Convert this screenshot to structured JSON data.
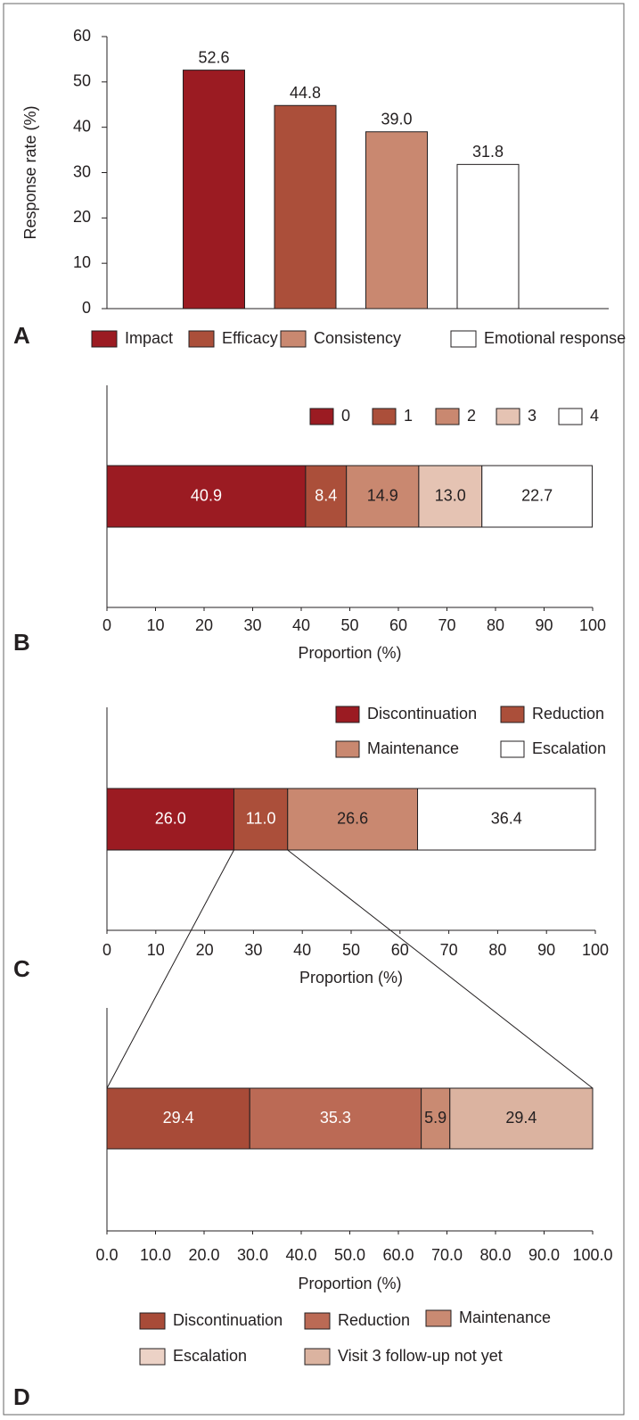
{
  "chart_data": [
    {
      "type": "bar",
      "panel_label": "A",
      "ylabel": "Response rate (%)",
      "categories": [
        "Impact",
        "Efficacy",
        "Consistency",
        "Emotional response"
      ],
      "colors": [
        "#9b1b22",
        "#ab4f3a",
        "#c98870",
        "#ffffff"
      ],
      "values": [
        52.6,
        44.8,
        39.0,
        31.8
      ],
      "value_labels": [
        "52.6",
        "44.8",
        "39.0",
        "31.8"
      ],
      "ylim": [
        0,
        60
      ],
      "yticks": [
        0,
        10,
        20,
        30,
        40,
        50,
        60
      ]
    },
    {
      "type": "stacked_barh",
      "panel_label": "B",
      "xlabel": "Proportion (%)",
      "series": [
        {
          "name": "0",
          "color": "#9b1b22",
          "label_color": "#ffffff",
          "values": [
            40.9
          ],
          "value_labels": [
            "40.9"
          ]
        },
        {
          "name": "1",
          "color": "#ab4f3a",
          "label_color": "#ffffff",
          "values": [
            8.4
          ],
          "value_labels": [
            "8.4"
          ]
        },
        {
          "name": "2",
          "color": "#c98870",
          "label_color": "#231f20",
          "values": [
            14.9
          ],
          "value_labels": [
            "14.9"
          ]
        },
        {
          "name": "3",
          "color": "#e5c3b3",
          "label_color": "#231f20",
          "values": [
            13.0
          ],
          "value_labels": [
            "13.0"
          ]
        },
        {
          "name": "4",
          "color": "#ffffff",
          "label_color": "#231f20",
          "values": [
            22.7
          ],
          "value_labels": [
            "22.7"
          ]
        }
      ],
      "xlim": [
        0,
        100
      ],
      "xticks": [
        0,
        10,
        20,
        30,
        40,
        50,
        60,
        70,
        80,
        90,
        100
      ]
    },
    {
      "type": "stacked_barh",
      "panel_label": "C",
      "xlabel": "Proportion (%)",
      "series": [
        {
          "name": "Discontinuation",
          "color": "#9b1b22",
          "label_color": "#ffffff",
          "values": [
            26.0
          ],
          "value_labels": [
            "26.0"
          ]
        },
        {
          "name": "Reduction",
          "color": "#ab4f3a",
          "label_color": "#ffffff",
          "values": [
            11.0
          ],
          "value_labels": [
            "11.0"
          ]
        },
        {
          "name": "Maintenance",
          "color": "#c98870",
          "label_color": "#231f20",
          "values": [
            26.6
          ],
          "value_labels": [
            "26.6"
          ]
        },
        {
          "name": "Escalation",
          "color": "#ffffff",
          "label_color": "#231f20",
          "values": [
            36.4
          ],
          "value_labels": [
            "36.4"
          ]
        }
      ],
      "xlim": [
        0,
        100
      ],
      "xticks": [
        0,
        10,
        20,
        30,
        40,
        50,
        60,
        70,
        80,
        90,
        100
      ]
    },
    {
      "type": "stacked_barh",
      "panel_label": "D",
      "xlabel": "Proportion (%)",
      "series": [
        {
          "name": "Discontinuation",
          "color": "#a84b38",
          "label_color": "#ffffff",
          "values": [
            29.4
          ],
          "value_labels": [
            "29.4"
          ]
        },
        {
          "name": "Reduction",
          "color": "#bb6a55",
          "label_color": "#ffffff",
          "values": [
            35.3
          ],
          "value_labels": [
            "35.3"
          ]
        },
        {
          "name": "Maintenance",
          "color": "#c98a72",
          "label_color": "#231f20",
          "values": [
            5.9
          ],
          "value_labels": [
            "5.9"
          ]
        },
        {
          "name": "Escalation",
          "color": "#ecd2c6",
          "label_color": "#231f20",
          "values": [
            0
          ],
          "value_labels": [
            null
          ]
        },
        {
          "name": "Visit 3 follow-up not yet",
          "color": "#dbb3a0",
          "label_color": "#231f20",
          "values": [
            29.4
          ],
          "value_labels": [
            "29.4"
          ]
        }
      ],
      "xlim": [
        0,
        100
      ],
      "xticks": [
        {
          "value": 0,
          "label": "0.0"
        },
        {
          "value": 10,
          "label": "10.0"
        },
        {
          "value": 20,
          "label": "20.0"
        },
        {
          "value": 30,
          "label": "30.0"
        },
        {
          "value": 40,
          "label": "40.0"
        },
        {
          "value": 50,
          "label": "50.0"
        },
        {
          "value": 60,
          "label": "60.0"
        },
        {
          "value": 70,
          "label": "70.0"
        },
        {
          "value": 80,
          "label": "80.0"
        },
        {
          "value": 90,
          "label": "90.0"
        },
        {
          "value": 100,
          "label": "100.0"
        }
      ]
    }
  ]
}
